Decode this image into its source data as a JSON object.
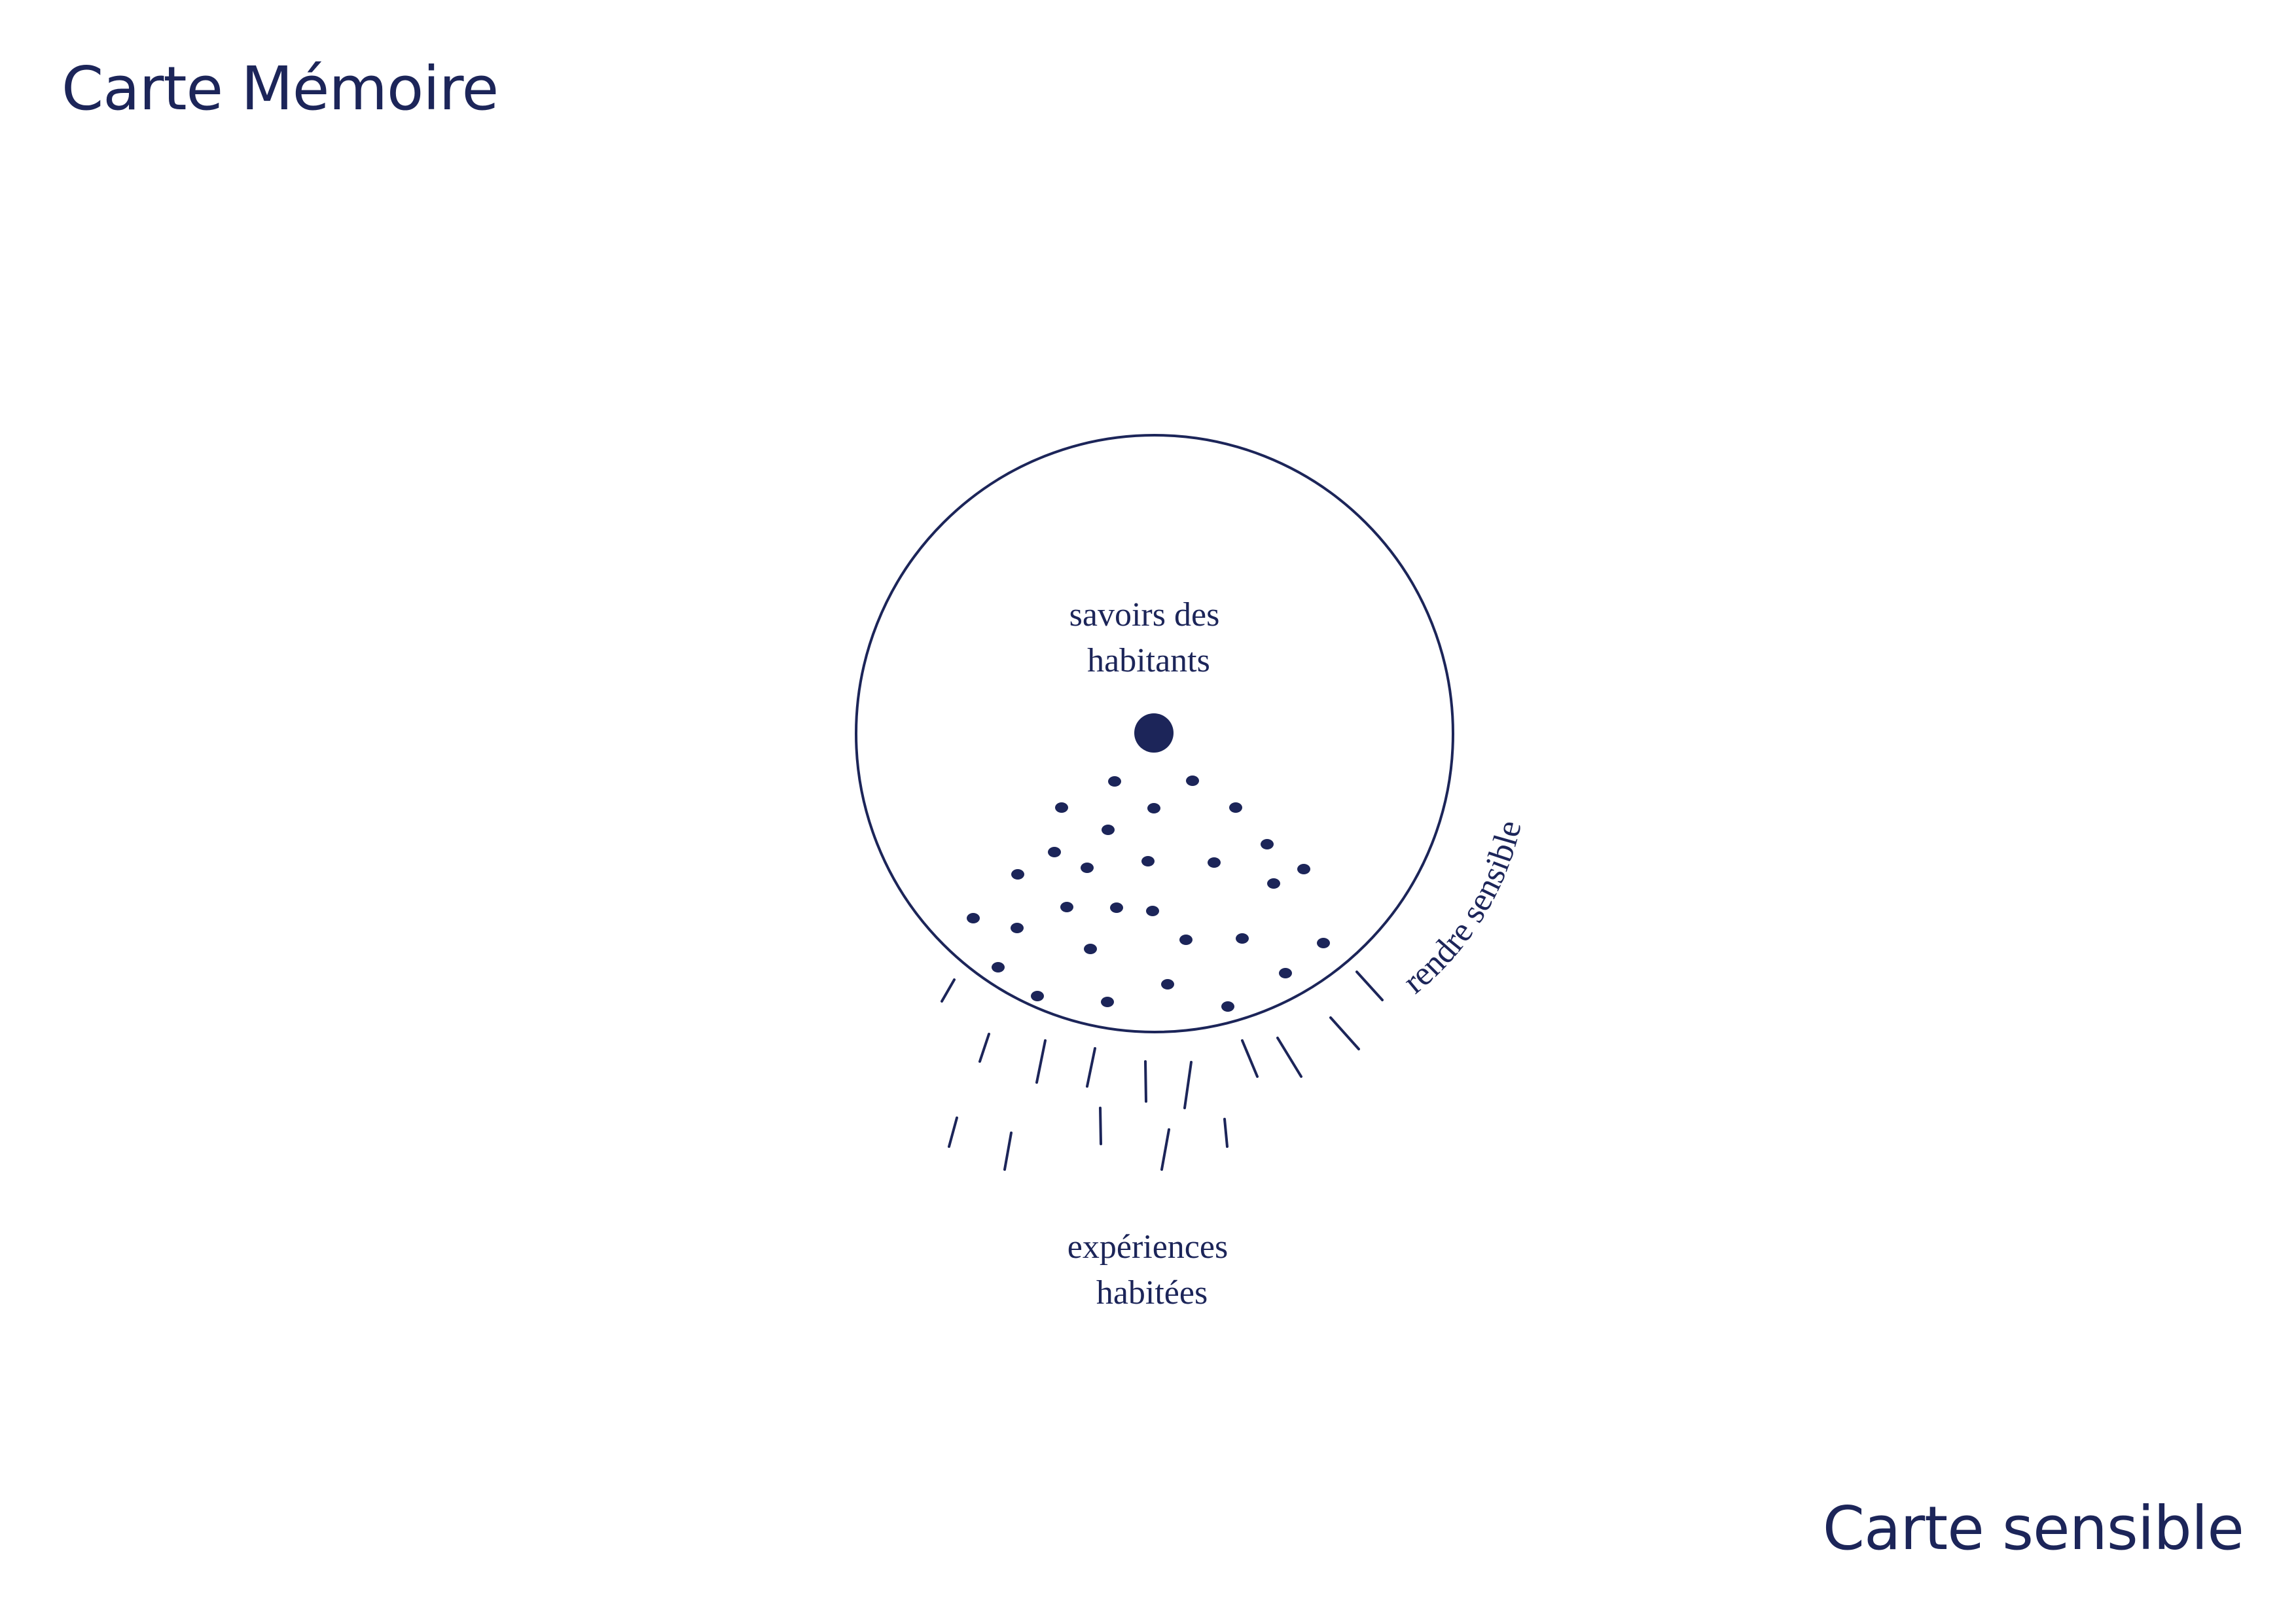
{
  "titles": {
    "top_left": "Carte Mémoire",
    "bottom_right": "Carte sensible"
  },
  "diagram": {
    "inner_label": [
      "savoirs des",
      "habitants"
    ],
    "outer_label": [
      "expériences",
      "habitées"
    ],
    "arc_label": "rendre sensible"
  },
  "colors": {
    "ink": "#1c2559",
    "background": "#ffffff"
  }
}
